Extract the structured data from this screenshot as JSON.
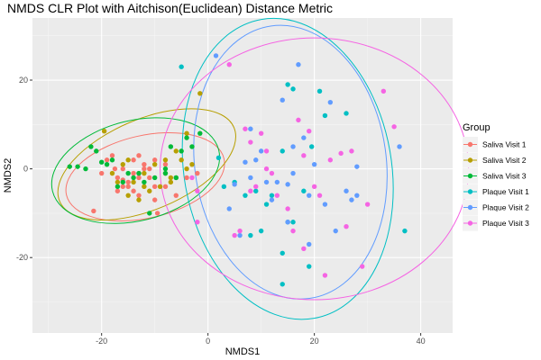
{
  "chart_data": {
    "type": "scatter",
    "title": "NMDS CLR Plot with Aitchison(Euclidean) Distance Metric",
    "xlabel": "NMDS1",
    "ylabel": "NMDS2",
    "xlim": [
      -33,
      46
    ],
    "ylim": [
      -37,
      34
    ],
    "xticks": [
      -20,
      0,
      20,
      40
    ],
    "yticks": [
      -20,
      0,
      20
    ],
    "grid": true,
    "legend": {
      "title": "Group",
      "position": "right"
    },
    "series": [
      {
        "name": "Saliva Visit 1",
        "color": "#F8766D",
        "points": [
          [
            -21.5,
            -9.5
          ],
          [
            -19,
            2
          ],
          [
            -18,
            3
          ],
          [
            -17.5,
            0
          ],
          [
            -17,
            -2
          ],
          [
            -16,
            -2.5
          ],
          [
            -16,
            -4
          ],
          [
            -15,
            -4
          ],
          [
            -15,
            -3
          ],
          [
            -14,
            2
          ],
          [
            -13,
            3
          ],
          [
            -13,
            -2
          ],
          [
            -12,
            0
          ],
          [
            -12,
            1
          ],
          [
            -11,
            -2
          ],
          [
            -10,
            2
          ],
          [
            -10,
            -4
          ],
          [
            -10,
            -7
          ],
          [
            -13,
            -6
          ],
          [
            -14,
            -5
          ],
          [
            -8,
            1
          ],
          [
            -8,
            -4
          ],
          [
            -9.5,
            -10
          ],
          [
            -13,
            -1
          ],
          [
            -6,
            -6
          ],
          [
            -4,
            -2
          ],
          [
            -2,
            -1
          ],
          [
            -11,
            0
          ],
          [
            -14,
            -1
          ],
          [
            -16,
            0
          ],
          [
            -17,
            -5
          ],
          [
            -20,
            -1
          ]
        ]
      },
      {
        "name": "Saliva Visit 2",
        "color": "#B79F00",
        "points": [
          [
            -19.5,
            8.5
          ],
          [
            -18,
            -1
          ],
          [
            -17,
            -3
          ],
          [
            -16,
            1
          ],
          [
            -15,
            2
          ],
          [
            -14,
            -3
          ],
          [
            -13,
            -7
          ],
          [
            -12,
            -1
          ],
          [
            -11,
            -5
          ],
          [
            -10,
            1
          ],
          [
            -9,
            -4
          ],
          [
            -8,
            2
          ],
          [
            -7,
            -3
          ],
          [
            -6,
            4
          ],
          [
            -5,
            2
          ],
          [
            -4,
            0
          ],
          [
            -3,
            1
          ],
          [
            -1.5,
            17
          ],
          [
            -4,
            8
          ],
          [
            -7,
            -2
          ],
          [
            -15,
            -6
          ],
          [
            -12,
            -4
          ],
          [
            -6,
            -2
          ],
          [
            -8,
            -1
          ]
        ]
      },
      {
        "name": "Saliva Visit 3",
        "color": "#00BA38",
        "points": [
          [
            -26,
            0.5
          ],
          [
            -24.5,
            0.5
          ],
          [
            -23,
            0
          ],
          [
            -22,
            5
          ],
          [
            -21,
            4
          ],
          [
            -20,
            1.5
          ],
          [
            -19,
            1
          ],
          [
            -18,
            2
          ],
          [
            -17,
            -4
          ],
          [
            -16,
            -3
          ],
          [
            -15,
            -1
          ],
          [
            -13,
            -1
          ],
          [
            -12,
            -3
          ],
          [
            -11,
            -10
          ],
          [
            -10,
            -2
          ],
          [
            -8,
            0
          ],
          [
            -8,
            -1
          ],
          [
            -6,
            -2
          ],
          [
            -5,
            4
          ],
          [
            -4,
            7
          ],
          [
            -3,
            5
          ],
          [
            -1.5,
            8
          ],
          [
            -14,
            -2
          ],
          [
            -7,
            5
          ]
        ]
      },
      {
        "name": "Plaque Visit 1",
        "color": "#00BFC4",
        "points": [
          [
            -5,
            23
          ],
          [
            2,
            2.5
          ],
          [
            3,
            -4
          ],
          [
            5,
            -3
          ],
          [
            7,
            -6
          ],
          [
            9,
            -5
          ],
          [
            10,
            -14
          ],
          [
            11,
            -8
          ],
          [
            12,
            -6
          ],
          [
            14,
            4
          ],
          [
            14,
            -19
          ],
          [
            15,
            -12
          ],
          [
            15,
            19
          ],
          [
            16,
            18
          ],
          [
            16,
            -12
          ],
          [
            18,
            -5
          ],
          [
            19,
            -22
          ],
          [
            21,
            17.5
          ],
          [
            22,
            12
          ],
          [
            26,
            12.5
          ],
          [
            37,
            -14
          ],
          [
            14,
            -26
          ],
          [
            8,
            -15
          ],
          [
            19.5,
            5
          ]
        ]
      },
      {
        "name": "Plaque Visit 2",
        "color": "#619CFF",
        "points": [
          [
            1.5,
            25.5
          ],
          [
            4,
            -9
          ],
          [
            5,
            -3.5
          ],
          [
            6,
            -15
          ],
          [
            7,
            1.5
          ],
          [
            8,
            -2
          ],
          [
            8,
            9
          ],
          [
            9,
            2
          ],
          [
            10,
            4
          ],
          [
            11,
            -3
          ],
          [
            12,
            -7
          ],
          [
            13,
            -3
          ],
          [
            14,
            15.5
          ],
          [
            15,
            -12
          ],
          [
            15,
            -3.5
          ],
          [
            16,
            5
          ],
          [
            16,
            -1
          ],
          [
            17,
            23.5
          ],
          [
            18,
            7
          ],
          [
            19,
            -6
          ],
          [
            19,
            -17
          ],
          [
            20,
            1
          ],
          [
            22,
            -8
          ],
          [
            23,
            15
          ],
          [
            24,
            -14
          ],
          [
            26,
            -5
          ],
          [
            27,
            -7
          ],
          [
            28,
            0.5
          ],
          [
            28,
            -6
          ],
          [
            36,
            5
          ]
        ]
      },
      {
        "name": "Plaque Visit 3",
        "color": "#F564E3",
        "points": [
          [
            -3,
            -2
          ],
          [
            -2,
            -5
          ],
          [
            -2,
            -12
          ],
          [
            4,
            23.5
          ],
          [
            5,
            -15
          ],
          [
            6,
            -14
          ],
          [
            7,
            9
          ],
          [
            8,
            6
          ],
          [
            8,
            -5
          ],
          [
            9,
            -4
          ],
          [
            10,
            8
          ],
          [
            11,
            0
          ],
          [
            12,
            -1
          ],
          [
            13,
            -6
          ],
          [
            15,
            -9
          ],
          [
            16,
            -14
          ],
          [
            17,
            11
          ],
          [
            18,
            3
          ],
          [
            20,
            -4
          ],
          [
            21,
            -6
          ],
          [
            22,
            -24
          ],
          [
            23,
            2
          ],
          [
            25,
            3.5
          ],
          [
            26,
            -13
          ],
          [
            27,
            4
          ],
          [
            29,
            -22
          ],
          [
            33,
            17.5
          ],
          [
            35,
            9.5
          ],
          [
            18,
            -18
          ],
          [
            19,
            8.5
          ],
          [
            11,
            4
          ],
          [
            30,
            -8
          ]
        ]
      }
    ],
    "ellipses": [
      {
        "series": "Saliva Visit 1",
        "cx": -11.8,
        "cy": -1.8,
        "rx": 15.2,
        "ry": 9.3,
        "angle_deg": 13
      },
      {
        "series": "Saliva Visit 2",
        "cx": -11.5,
        "cy": 1.0,
        "rx": 17.8,
        "ry": 10.2,
        "angle_deg": 23
      },
      {
        "series": "Saliva Visit 3",
        "cx": -13.6,
        "cy": -0.4,
        "rx": 16.1,
        "ry": 11.3,
        "angle_deg": 14
      },
      {
        "series": "Plaque Visit 1",
        "cx": 15.0,
        "cy": 0.0,
        "rx": 19.5,
        "ry": 34.2,
        "angle_deg": 10
      },
      {
        "series": "Plaque Visit 2",
        "cx": 15.5,
        "cy": 1.5,
        "rx": 18.0,
        "ry": 31.0,
        "angle_deg": 8
      },
      {
        "series": "Plaque Visit 3",
        "cx": 20.0,
        "cy": 0.0,
        "rx": 29.0,
        "ry": 29.5,
        "angle_deg": 0
      }
    ]
  }
}
